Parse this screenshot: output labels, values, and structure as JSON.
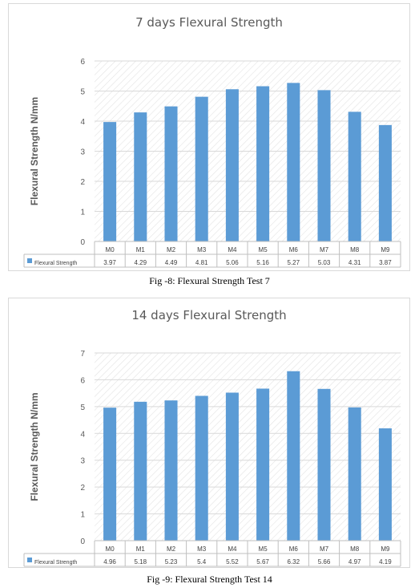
{
  "chart_data": [
    {
      "type": "bar",
      "title": "7 days Flexural Strength",
      "ylabel": "Flexural  Strength N/mm",
      "xlabel": "",
      "categories": [
        "M0",
        "M1",
        "M2",
        "M3",
        "M4",
        "M5",
        "M6",
        "M7",
        "M8",
        "M9"
      ],
      "series": [
        {
          "name": "Flexural Strength",
          "values": [
            3.97,
            4.29,
            4.49,
            4.81,
            5.06,
            5.16,
            5.27,
            5.03,
            4.31,
            3.87
          ]
        }
      ],
      "value_labels": [
        "3.97",
        "4.29",
        "4.49",
        "4.81",
        "5.06",
        "5.16",
        "5.27",
        "5.03",
        "4.31",
        "3.87"
      ],
      "ylim": [
        0,
        6
      ],
      "yticks": [
        0,
        1,
        2,
        3,
        4,
        5,
        6
      ],
      "grid": true,
      "legend": "data-table",
      "bar_color": "#5b9bd5"
    },
    {
      "type": "bar",
      "title": "14 days Flexural Strength",
      "ylabel": "Flexural  Strength N/mm",
      "xlabel": "",
      "categories": [
        "M0",
        "M1",
        "M2",
        "M3",
        "M4",
        "M5",
        "M6",
        "M7",
        "M8",
        "M9"
      ],
      "series": [
        {
          "name": "Flexural Strength",
          "values": [
            4.96,
            5.18,
            5.23,
            5.4,
            5.52,
            5.67,
            6.32,
            5.66,
            4.97,
            4.19
          ]
        }
      ],
      "value_labels": [
        "4.96",
        "5.18",
        "5.23",
        "5.4",
        "5.52",
        "5.67",
        "6.32",
        "5.66",
        "4.97",
        "4.19"
      ],
      "ylim": [
        0,
        7
      ],
      "yticks": [
        0,
        1,
        2,
        3,
        4,
        5,
        6,
        7
      ],
      "grid": true,
      "legend": "data-table",
      "bar_color": "#5b9bd5"
    }
  ],
  "captions": {
    "fig8": "Fig -8:   Flexural Strength Test 7",
    "fig9": "Fig -9:   Flexural Strength Test 14"
  }
}
